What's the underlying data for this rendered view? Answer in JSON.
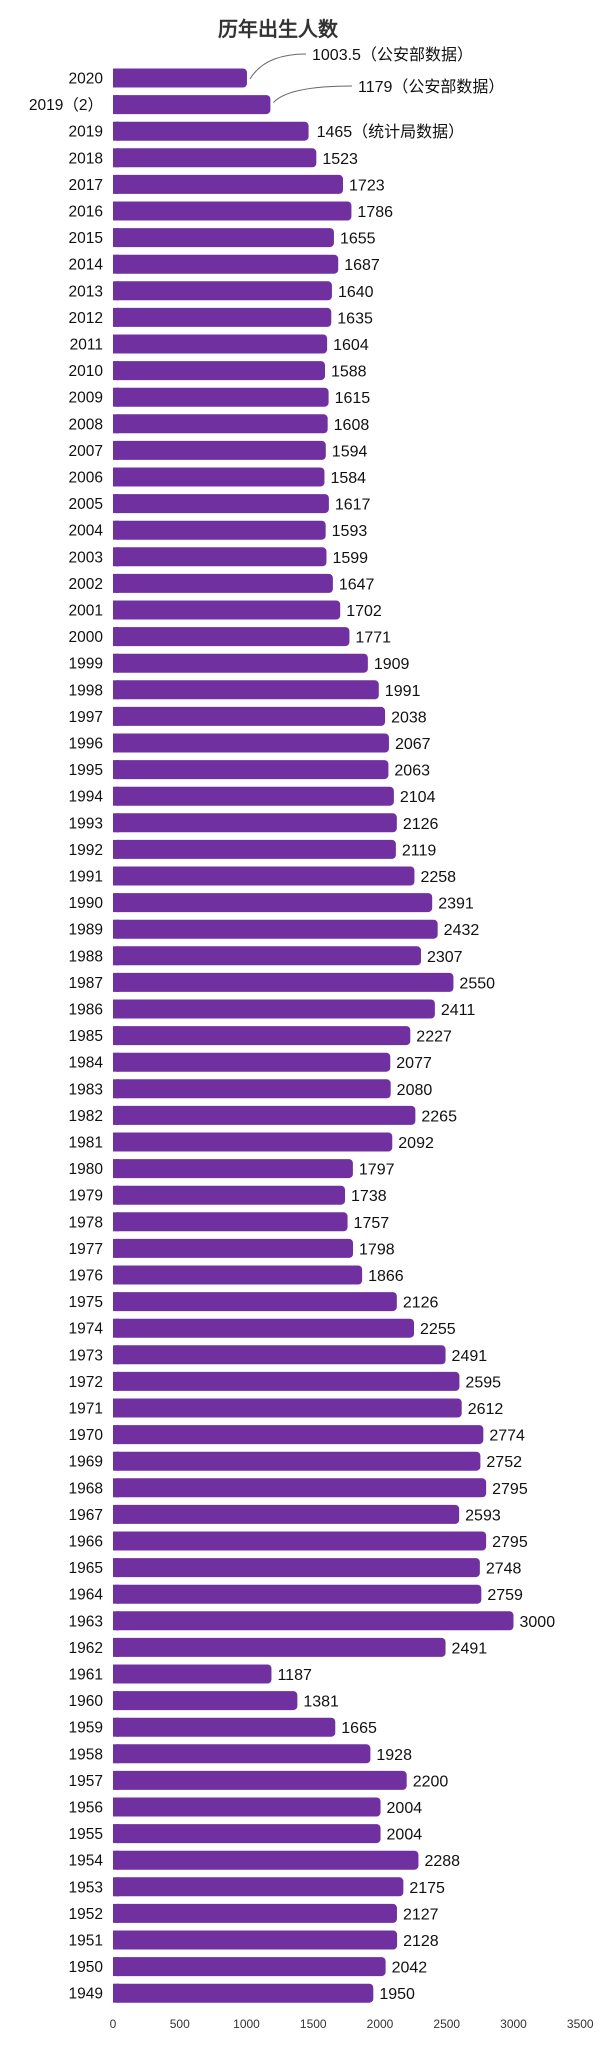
{
  "chart_data": {
    "type": "bar",
    "orientation": "horizontal",
    "title": "历年出生人数",
    "categories": [
      "2020",
      "2019（2）",
      "2019",
      "2018",
      "2017",
      "2016",
      "2015",
      "2014",
      "2013",
      "2012",
      "2011",
      "2010",
      "2009",
      "2008",
      "2007",
      "2006",
      "2005",
      "2004",
      "2003",
      "2002",
      "2001",
      "2000",
      "1999",
      "1998",
      "1997",
      "1996",
      "1995",
      "1994",
      "1993",
      "1992",
      "1991",
      "1990",
      "1989",
      "1988",
      "1987",
      "1986",
      "1985",
      "1984",
      "1983",
      "1982",
      "1981",
      "1980",
      "1979",
      "1978",
      "1977",
      "1976",
      "1975",
      "1974",
      "1973",
      "1972",
      "1971",
      "1970",
      "1969",
      "1968",
      "1967",
      "1966",
      "1965",
      "1964",
      "1963",
      "1962",
      "1961",
      "1960",
      "1959",
      "1958",
      "1957",
      "1956",
      "1955",
      "1954",
      "1953",
      "1952",
      "1951",
      "1950",
      "1949"
    ],
    "values": [
      1003.5,
      1179,
      1465,
      1523,
      1723,
      1786,
      1655,
      1687,
      1640,
      1635,
      1604,
      1588,
      1615,
      1608,
      1594,
      1584,
      1617,
      1593,
      1599,
      1647,
      1702,
      1771,
      1909,
      1991,
      2038,
      2067,
      2063,
      2104,
      2126,
      2119,
      2258,
      2391,
      2432,
      2307,
      2550,
      2411,
      2227,
      2077,
      2080,
      2265,
      2092,
      1797,
      1738,
      1757,
      1798,
      1866,
      2126,
      2255,
      2491,
      2595,
      2612,
      2774,
      2752,
      2795,
      2593,
      2795,
      2748,
      2759,
      3000,
      2491,
      1187,
      1381,
      1665,
      1928,
      2200,
      2004,
      2004,
      2288,
      2175,
      2127,
      2128,
      2042,
      1950
    ],
    "value_labels": [
      "1003.5（公安部数据）",
      "1179（公安部数据）",
      "1465（统计局数据）",
      "1523",
      "1723",
      "1786",
      "1655",
      "1687",
      "1640",
      "1635",
      "1604",
      "1588",
      "1615",
      "1608",
      "1594",
      "1584",
      "1617",
      "1593",
      "1599",
      "1647",
      "1702",
      "1771",
      "1909",
      "1991",
      "2038",
      "2067",
      "2063",
      "2104",
      "2126",
      "2119",
      "2258",
      "2391",
      "2432",
      "2307",
      "2550",
      "2411",
      "2227",
      "2077",
      "2080",
      "2265",
      "2092",
      "1797",
      "1738",
      "1757",
      "1798",
      "1866",
      "2126",
      "2255",
      "2491",
      "2595",
      "2612",
      "2774",
      "2752",
      "2795",
      "2593",
      "2795",
      "2748",
      "2759",
      "3000",
      "2491",
      "1187",
      "1381",
      "1665",
      "1928",
      "2200",
      "2004",
      "2004",
      "2288",
      "2175",
      "2127",
      "2128",
      "2042",
      "1950"
    ],
    "x_ticks": [
      "0",
      "500",
      "1000",
      "1500",
      "2000",
      "2500",
      "3000",
      "3500"
    ],
    "xlim": [
      0,
      3500
    ],
    "xlabel": "",
    "ylabel": "",
    "grid": false,
    "legend": "none",
    "bar_color": "#7030a0"
  }
}
